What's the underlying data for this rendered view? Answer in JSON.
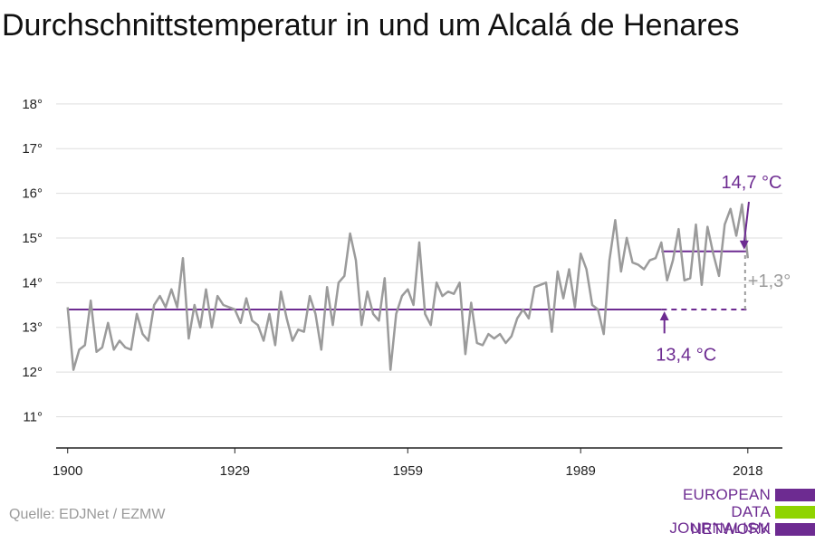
{
  "title": "Durchschnittstemperatur in und um Alcalá de Henares",
  "source": "Quelle: EDJNet / EZMW",
  "logo": {
    "lines": [
      "EUROPEAN",
      "DATA JOURNALISM",
      "NETWORK"
    ],
    "colors": {
      "purple": "#6d2b91",
      "green": "#8fd400"
    }
  },
  "colors": {
    "line": "#9b9b9b",
    "mean": "#6d2b91",
    "grid": "#dddddd",
    "axis": "#222222",
    "diff": "#9b9b9b"
  },
  "chart_data": {
    "type": "line",
    "title": "Durchschnittstemperatur in und um Alcalá de Henares",
    "xlabel": "",
    "ylabel": "",
    "xlim": [
      1898,
      2024
    ],
    "ylim": [
      10.3,
      18.3
    ],
    "grid": true,
    "y_ticks": [
      11,
      12,
      13,
      14,
      15,
      16,
      17,
      18
    ],
    "y_tick_labels": [
      "11°",
      "12°",
      "13°",
      "14°",
      "15°",
      "16°",
      "17°",
      "18°"
    ],
    "x_ticks": [
      1900,
      1929,
      1959,
      1989,
      2018
    ],
    "x_tick_labels": [
      "1900",
      "1929",
      "1959",
      "1989",
      "2018"
    ],
    "series": [
      {
        "x": [
          1900,
          1901,
          1902,
          1903,
          1904,
          1905,
          1906,
          1907,
          1908,
          1909,
          1910,
          1911,
          1912,
          1913,
          1914,
          1915,
          1916,
          1917,
          1918,
          1919,
          1920,
          1921,
          1922,
          1923,
          1924,
          1925,
          1926,
          1927,
          1928,
          1929,
          1930,
          1931,
          1932,
          1933,
          1934,
          1935,
          1936,
          1937,
          1938,
          1939,
          1940,
          1941,
          1942,
          1943,
          1944,
          1945,
          1946,
          1947,
          1948,
          1949,
          1950,
          1951,
          1952,
          1953,
          1954,
          1955,
          1956,
          1957,
          1958,
          1959,
          1960,
          1961,
          1962,
          1963,
          1964,
          1965,
          1966,
          1967,
          1968,
          1969,
          1970,
          1971,
          1972,
          1973,
          1974,
          1975,
          1976,
          1977,
          1978,
          1979,
          1980,
          1981,
          1982,
          1983,
          1984,
          1985,
          1986,
          1987,
          1988,
          1989,
          1990,
          1991,
          1992,
          1993,
          1994,
          1995,
          1996,
          1997,
          1998,
          1999,
          2000,
          2001,
          2002,
          2003,
          2004,
          2005,
          2006,
          2007,
          2008,
          2009,
          2010,
          2011,
          2012,
          2013,
          2014,
          2015,
          2016,
          2017,
          2018
        ],
        "values": [
          13.45,
          12.05,
          12.5,
          12.6,
          13.6,
          12.45,
          12.55,
          13.1,
          12.5,
          12.7,
          12.55,
          12.5,
          13.3,
          12.85,
          12.7,
          13.5,
          13.7,
          13.45,
          13.85,
          13.45,
          14.55,
          12.75,
          13.5,
          13.0,
          13.85,
          13.0,
          13.7,
          13.5,
          13.45,
          13.4,
          13.1,
          13.65,
          13.15,
          13.05,
          12.7,
          13.3,
          12.6,
          13.8,
          13.2,
          12.7,
          12.95,
          12.9,
          13.7,
          13.3,
          12.5,
          13.9,
          13.05,
          14.0,
          14.15,
          15.1,
          14.5,
          13.05,
          13.8,
          13.3,
          13.15,
          14.1,
          12.05,
          13.3,
          13.7,
          13.85,
          13.5,
          14.9,
          13.3,
          13.05,
          14.0,
          13.7,
          13.8,
          13.75,
          14.0,
          12.4,
          13.55,
          12.65,
          12.6,
          12.85,
          12.75,
          12.85,
          12.65,
          12.8,
          13.2,
          13.4,
          13.2,
          13.9,
          13.95,
          14.0,
          12.9,
          14.25,
          13.65,
          14.3,
          13.45,
          14.65,
          14.3,
          13.5,
          13.4,
          12.85,
          14.5,
          15.4,
          14.25,
          15.0,
          14.45,
          14.4,
          14.3,
          14.5,
          14.55,
          14.9,
          14.05,
          14.5,
          15.2,
          14.05,
          14.1,
          15.3,
          13.95,
          15.25,
          14.65,
          14.15,
          15.3,
          15.65,
          15.05,
          15.75,
          14.55
        ]
      }
    ],
    "reference_lines": [
      {
        "value": 13.4,
        "from": 1900,
        "to": 2003,
        "style": "solid"
      },
      {
        "value": 13.4,
        "from": 2003,
        "to": 2018,
        "style": "dashed"
      },
      {
        "value": 14.7,
        "from": 2003,
        "to": 2018,
        "style": "solid"
      }
    ],
    "annotations": [
      {
        "text": "13,4 °C",
        "x": 2004,
        "y": 12.5
      },
      {
        "text": "14,7 °C",
        "x": 2017,
        "y": 16.25
      },
      {
        "text": "+1,3°",
        "x": 2018.5,
        "y": 14.05
      }
    ]
  }
}
